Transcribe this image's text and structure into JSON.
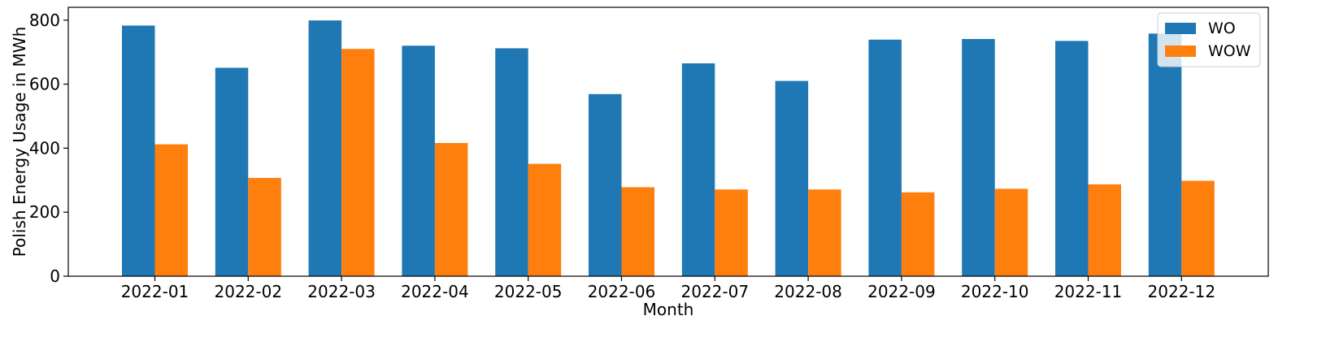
{
  "chart_data": {
    "type": "bar",
    "categories": [
      "2022-01",
      "2022-02",
      "2022-03",
      "2022-04",
      "2022-05",
      "2022-06",
      "2022-07",
      "2022-08",
      "2022-09",
      "2022-10",
      "2022-11",
      "2022-12"
    ],
    "series": [
      {
        "name": "WO",
        "color": "#1f77b4",
        "values": [
          783,
          651,
          799,
          720,
          712,
          569,
          665,
          610,
          739,
          741,
          735,
          758
        ]
      },
      {
        "name": "WOW",
        "color": "#ff7f0e",
        "values": [
          412,
          307,
          710,
          416,
          351,
          278,
          271,
          271,
          262,
          273,
          287,
          298
        ]
      }
    ],
    "xlabel": "Month",
    "ylabel": "Polish Energy Usage in MWh",
    "ylim": [
      0,
      840
    ],
    "yticks": [
      0,
      200,
      400,
      600,
      800
    ],
    "grid": false,
    "legend_position": "top-right"
  }
}
